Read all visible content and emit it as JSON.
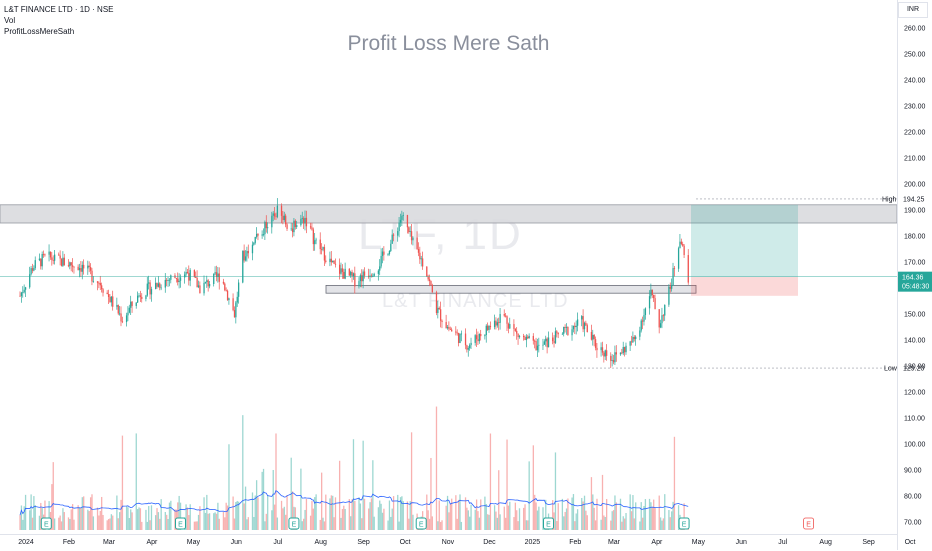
{
  "header": {
    "title": "L&T FINANCE LTD · 1D · NSE",
    "indicator1": "Vol",
    "indicator2": "ProfitLossMereSath"
  },
  "watermark": {
    "text": "Profit Loss Mere Sath",
    "symbol": "LTF, 1D",
    "company": "L&T FINANCE LTD"
  },
  "currency": "INR",
  "price_scale": {
    "ticks": [
      "260.00",
      "250.00",
      "240.00",
      "230.00",
      "220.00",
      "210.00",
      "200.00",
      "190.00",
      "180.00",
      "170.00",
      "160.00",
      "150.00",
      "140.00",
      "130.00",
      "120.00",
      "110.00",
      "100.00",
      "90.00",
      "80.00",
      "70.00"
    ],
    "high_label": "High",
    "high_value": "194.25",
    "low_label": "Low",
    "low_value": "129.20",
    "last_price": "164.36",
    "countdown": "05:48:30"
  },
  "time_axis": [
    "2024",
    "Feb",
    "Mar",
    "Apr",
    "May",
    "Jun",
    "Jul",
    "Aug",
    "Sep",
    "Oct",
    "Nov",
    "Dec",
    "2025",
    "Feb",
    "Mar",
    "Apr",
    "May",
    "Jun",
    "Jul",
    "Aug",
    "Sep",
    "Oct"
  ],
  "colors": {
    "up": "#26a69a",
    "down": "#ef5350",
    "zone": "#d9dade",
    "target": "#26a69a",
    "stop": "#ef5350",
    "volume_ma": "#2962ff"
  },
  "chart_data": {
    "type": "candlestick",
    "title": "L&T FINANCE LTD · 1D · NSE",
    "ylim": [
      70,
      265
    ],
    "close_anchors": [
      [
        "2024-01-01",
        157
      ],
      [
        "2024-01-10",
        168
      ],
      [
        "2024-01-20",
        172
      ],
      [
        "2024-02-01",
        170
      ],
      [
        "2024-02-15",
        168
      ],
      [
        "2024-02-28",
        162
      ],
      [
        "2024-03-15",
        148
      ],
      [
        "2024-03-28",
        158
      ],
      [
        "2024-04-15",
        163
      ],
      [
        "2024-05-01",
        166
      ],
      [
        "2024-05-10",
        160
      ],
      [
        "2024-05-25",
        165
      ],
      [
        "2024-06-04",
        150
      ],
      [
        "2024-06-10",
        172
      ],
      [
        "2024-06-20",
        180
      ],
      [
        "2024-07-01",
        186
      ],
      [
        "2024-07-05",
        190
      ],
      [
        "2024-07-15",
        183
      ],
      [
        "2024-07-25",
        187
      ],
      [
        "2024-08-01",
        178
      ],
      [
        "2024-08-15",
        168
      ],
      [
        "2024-08-30",
        163
      ],
      [
        "2024-09-15",
        168
      ],
      [
        "2024-09-25",
        177
      ],
      [
        "2024-10-03",
        188
      ],
      [
        "2024-10-10",
        178
      ],
      [
        "2024-10-20",
        168
      ],
      [
        "2024-10-28",
        152
      ],
      [
        "2024-11-05",
        145
      ],
      [
        "2024-11-20",
        138
      ],
      [
        "2024-12-05",
        145
      ],
      [
        "2024-12-15",
        150
      ],
      [
        "2024-12-25",
        142
      ],
      [
        "2025-01-10",
        137
      ],
      [
        "2025-01-25",
        142
      ],
      [
        "2025-02-10",
        147
      ],
      [
        "2025-02-20",
        138
      ],
      [
        "2025-03-05",
        133
      ],
      [
        "2025-03-20",
        140
      ],
      [
        "2025-04-01",
        158
      ],
      [
        "2025-04-07",
        146
      ],
      [
        "2025-04-15",
        160
      ],
      [
        "2025-04-22",
        180
      ],
      [
        "2025-04-28",
        164.36
      ]
    ],
    "support_resistance_zones": [
      {
        "top": 192,
        "bottom": 185
      },
      {
        "top": 161,
        "bottom": 158
      }
    ],
    "position": {
      "entry": 164.36,
      "target": 192,
      "stop": 157
    },
    "volume_overlay": true
  }
}
